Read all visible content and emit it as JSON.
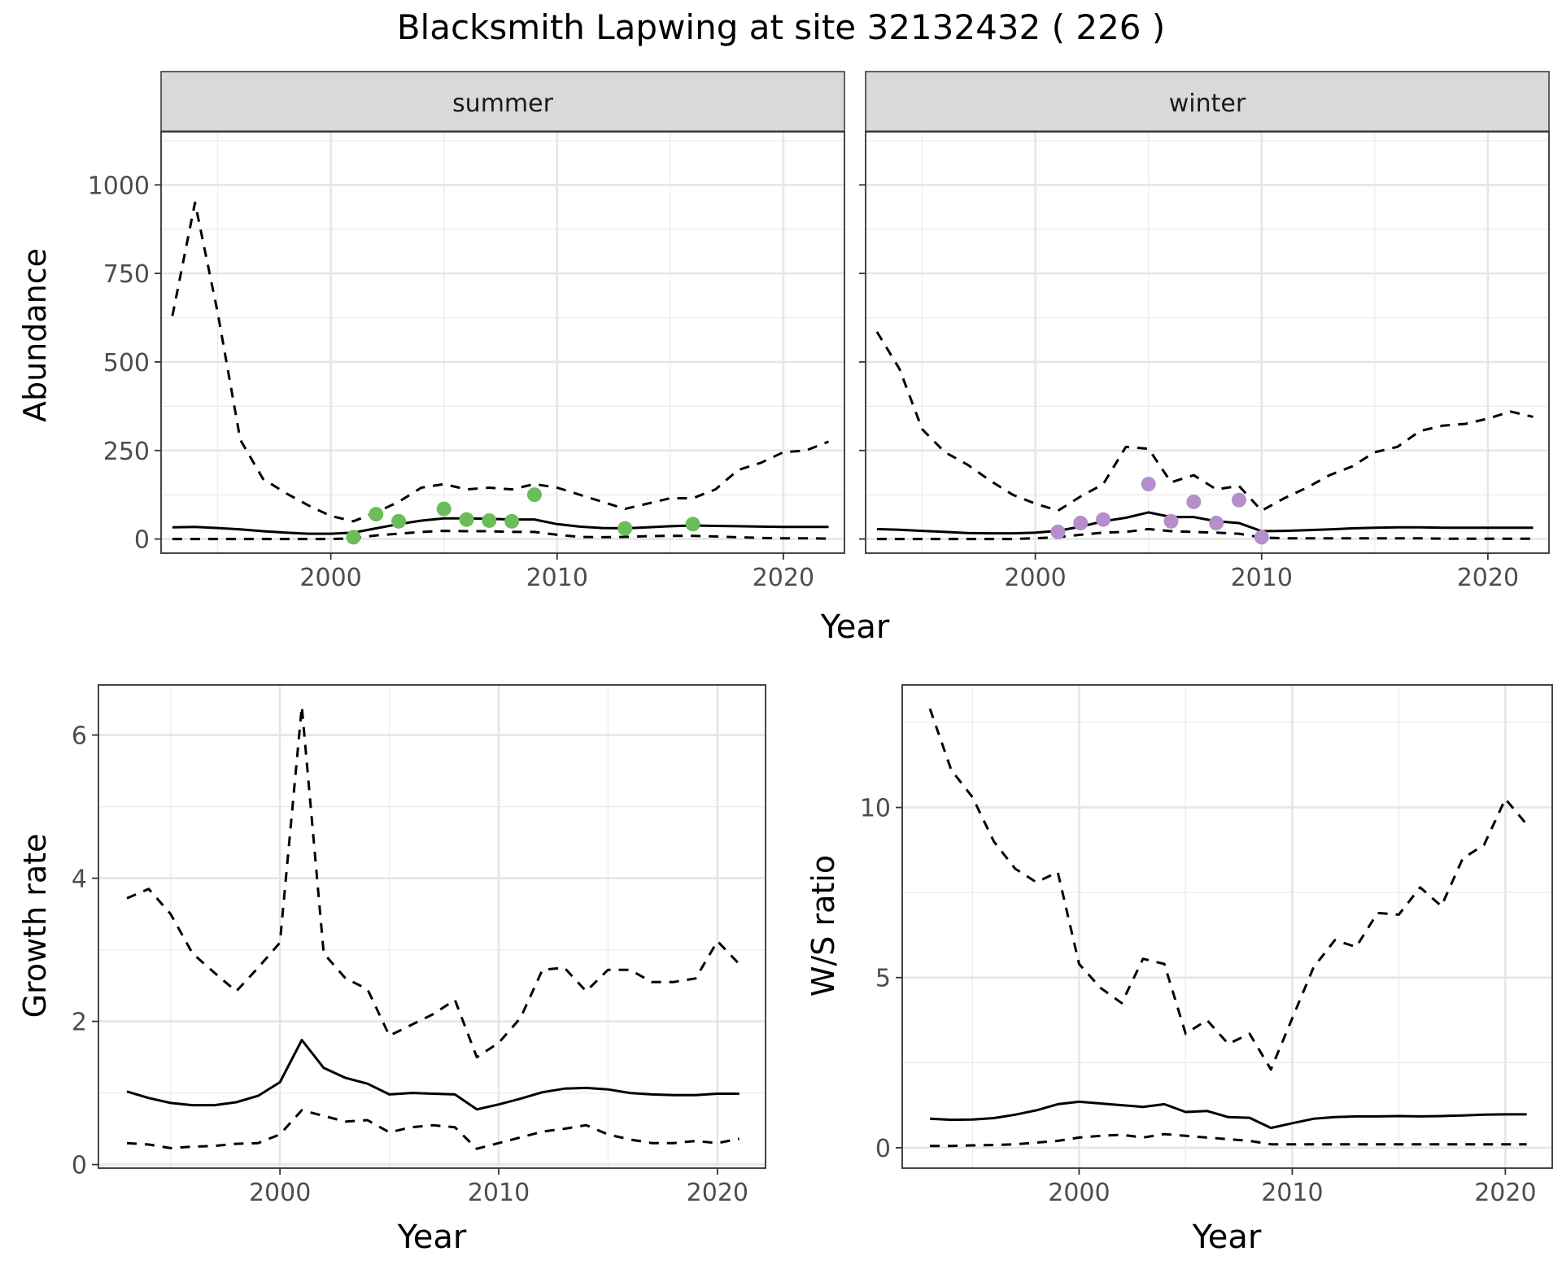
{
  "figure": {
    "title": "Blacksmith Lapwing at site 32132432 ( 226 )"
  },
  "chart_data": [
    {
      "type": "line",
      "panel": "summer",
      "strip_label": "summer",
      "xlabel": "",
      "ylabel": "Abundance",
      "xlim": [
        1992.5,
        2022.7
      ],
      "ylim": [
        -40,
        1150
      ],
      "xticks": [
        2000,
        2010,
        2020
      ],
      "yticks": [
        0,
        250,
        500,
        750,
        1000
      ],
      "grid": true,
      "series": [
        {
          "role": "estimate",
          "style": "solid",
          "x": [
            1993,
            1994,
            1995,
            1996,
            1997,
            1998,
            1999,
            2000,
            2001,
            2002,
            2003,
            2004,
            2005,
            2006,
            2007,
            2008,
            2009,
            2010,
            2011,
            2012,
            2013,
            2014,
            2015,
            2016,
            2017,
            2018,
            2019,
            2020,
            2021,
            2022
          ],
          "y": [
            33,
            34,
            31,
            27,
            22,
            18,
            15,
            15,
            18,
            30,
            42,
            52,
            58,
            58,
            57,
            55,
            55,
            42,
            35,
            31,
            30,
            33,
            36,
            38,
            37,
            36,
            35,
            34,
            34,
            34
          ]
        },
        {
          "role": "upper",
          "style": "dashed",
          "x": [
            1993,
            1994,
            1995,
            1996,
            1997,
            1998,
            1999,
            2000,
            2001,
            2002,
            2003,
            2004,
            2005,
            2006,
            2007,
            2008,
            2009,
            2010,
            2011,
            2012,
            2013,
            2014,
            2015,
            2016,
            2017,
            2018,
            2019,
            2020,
            2021,
            2022
          ],
          "y": [
            630,
            950,
            640,
            280,
            170,
            130,
            95,
            65,
            50,
            75,
            105,
            145,
            155,
            140,
            145,
            140,
            155,
            145,
            125,
            105,
            85,
            100,
            115,
            115,
            140,
            195,
            215,
            245,
            250,
            275
          ]
        },
        {
          "role": "lower",
          "style": "dashed",
          "x": [
            1993,
            1994,
            1995,
            1996,
            1997,
            1998,
            1999,
            2000,
            2001,
            2002,
            2003,
            2004,
            2005,
            2006,
            2007,
            2008,
            2009,
            2010,
            2011,
            2012,
            2013,
            2014,
            2015,
            2016,
            2017,
            2018,
            2019,
            2020,
            2021,
            2022
          ],
          "y": [
            0,
            0,
            0,
            0,
            0,
            0,
            0,
            0,
            2,
            10,
            15,
            20,
            23,
            22,
            22,
            20,
            20,
            12,
            6,
            5,
            6,
            8,
            9,
            9,
            7,
            5,
            3,
            2,
            2,
            1
          ]
        }
      ],
      "points": {
        "color": "#6ABD5A",
        "x": [
          2001,
          2002,
          2003,
          2005,
          2006,
          2007,
          2008,
          2009,
          2013,
          2016
        ],
        "y": [
          5,
          70,
          50,
          85,
          55,
          52,
          50,
          125,
          30,
          42
        ]
      }
    },
    {
      "type": "line",
      "panel": "winter",
      "strip_label": "winter",
      "xlabel": "",
      "ylabel": "",
      "xlim": [
        1992.5,
        2022.7
      ],
      "ylim": [
        -40,
        1150
      ],
      "xticks": [
        2000,
        2010,
        2020
      ],
      "yticks": [
        0,
        250,
        500,
        750,
        1000
      ],
      "grid": true,
      "series": [
        {
          "role": "estimate",
          "style": "solid",
          "x": [
            1993,
            1994,
            1995,
            1996,
            1997,
            1998,
            1999,
            2000,
            2001,
            2002,
            2003,
            2004,
            2005,
            2006,
            2007,
            2008,
            2009,
            2010,
            2011,
            2012,
            2013,
            2014,
            2015,
            2016,
            2017,
            2018,
            2019,
            2020,
            2021,
            2022
          ],
          "y": [
            28,
            26,
            23,
            20,
            17,
            16,
            16,
            18,
            23,
            35,
            50,
            60,
            75,
            62,
            62,
            50,
            45,
            22,
            23,
            25,
            27,
            30,
            32,
            33,
            33,
            32,
            32,
            32,
            32,
            32
          ]
        },
        {
          "role": "upper",
          "style": "dashed",
          "x": [
            1993,
            1994,
            1995,
            1996,
            1997,
            1998,
            1999,
            2000,
            2001,
            2002,
            2003,
            2004,
            2005,
            2006,
            2007,
            2008,
            2009,
            2010,
            2011,
            2012,
            2013,
            2014,
            2015,
            2016,
            2017,
            2018,
            2019,
            2020,
            2021,
            2022
          ],
          "y": [
            585,
            480,
            310,
            245,
            210,
            165,
            125,
            100,
            80,
            120,
            155,
            260,
            255,
            160,
            180,
            140,
            150,
            80,
            115,
            145,
            180,
            205,
            245,
            260,
            305,
            320,
            325,
            340,
            360,
            345
          ]
        },
        {
          "role": "lower",
          "style": "dashed",
          "x": [
            1993,
            1994,
            1995,
            1996,
            1997,
            1998,
            1999,
            2000,
            2001,
            2002,
            2003,
            2004,
            2005,
            2006,
            2007,
            2008,
            2009,
            2010,
            2011,
            2012,
            2013,
            2014,
            2015,
            2016,
            2017,
            2018,
            2019,
            2020,
            2021,
            2022
          ],
          "y": [
            0,
            0,
            0,
            0,
            0,
            0,
            0,
            2,
            5,
            12,
            18,
            20,
            28,
            22,
            20,
            18,
            15,
            4,
            2,
            2,
            2,
            2,
            2,
            2,
            2,
            1,
            1,
            1,
            1,
            1
          ]
        }
      ],
      "points": {
        "color": "#B48FC9",
        "x": [
          2001,
          2002,
          2003,
          2005,
          2006,
          2007,
          2008,
          2009,
          2010
        ],
        "y": [
          20,
          45,
          55,
          155,
          50,
          105,
          45,
          110,
          5
        ]
      }
    },
    {
      "type": "line",
      "panel": "growth",
      "xlabel": "Year",
      "ylabel": "Growth rate",
      "xlim": [
        1991.7,
        2022.2
      ],
      "ylim": [
        -0.05,
        6.7
      ],
      "xticks": [
        2000,
        2010,
        2020
      ],
      "yticks": [
        0,
        2,
        4,
        6
      ],
      "grid": true,
      "series": [
        {
          "role": "estimate",
          "style": "solid",
          "x": [
            1993,
            1994,
            1995,
            1996,
            1997,
            1998,
            1999,
            2000,
            2001,
            2002,
            2003,
            2004,
            2005,
            2006,
            2007,
            2008,
            2009,
            2010,
            2011,
            2012,
            2013,
            2014,
            2015,
            2016,
            2017,
            2018,
            2019,
            2020,
            2021
          ],
          "y": [
            1.02,
            0.93,
            0.86,
            0.83,
            0.83,
            0.87,
            0.96,
            1.15,
            1.74,
            1.35,
            1.21,
            1.13,
            0.98,
            1.0,
            0.99,
            0.98,
            0.77,
            0.84,
            0.92,
            1.01,
            1.06,
            1.07,
            1.05,
            1.0,
            0.98,
            0.97,
            0.97,
            0.99,
            0.99
          ]
        },
        {
          "role": "upper",
          "style": "dashed",
          "x": [
            1993,
            1994,
            1995,
            1996,
            1997,
            1998,
            1999,
            2000,
            2001,
            2002,
            2003,
            2004,
            2005,
            2006,
            2007,
            2008,
            2009,
            2010,
            2011,
            2012,
            2013,
            2014,
            2015,
            2016,
            2017,
            2018,
            2019,
            2020,
            2021
          ],
          "y": [
            3.72,
            3.85,
            3.5,
            2.95,
            2.68,
            2.42,
            2.75,
            3.1,
            6.4,
            2.95,
            2.6,
            2.45,
            1.8,
            1.95,
            2.1,
            2.3,
            1.5,
            1.7,
            2.05,
            2.72,
            2.75,
            2.42,
            2.72,
            2.72,
            2.55,
            2.55,
            2.6,
            3.12,
            2.8
          ]
        },
        {
          "role": "lower",
          "style": "dashed",
          "x": [
            1993,
            1994,
            1995,
            1996,
            1997,
            1998,
            1999,
            2000,
            2001,
            2002,
            2003,
            2004,
            2005,
            2006,
            2007,
            2008,
            2009,
            2010,
            2011,
            2012,
            2013,
            2014,
            2015,
            2016,
            2017,
            2018,
            2019,
            2020,
            2021
          ],
          "y": [
            0.3,
            0.28,
            0.23,
            0.25,
            0.26,
            0.29,
            0.3,
            0.42,
            0.76,
            0.68,
            0.6,
            0.62,
            0.45,
            0.52,
            0.55,
            0.52,
            0.22,
            0.3,
            0.38,
            0.46,
            0.5,
            0.55,
            0.42,
            0.35,
            0.3,
            0.3,
            0.33,
            0.3,
            0.36
          ]
        }
      ]
    },
    {
      "type": "line",
      "panel": "ratio",
      "xlabel": "Year",
      "ylabel": "W/S ratio",
      "xlim": [
        1991.7,
        2022.2
      ],
      "ylim": [
        -0.6,
        13.6
      ],
      "xticks": [
        2000,
        2010,
        2020
      ],
      "yticks": [
        0,
        5,
        10
      ],
      "grid": true,
      "series": [
        {
          "role": "estimate",
          "style": "solid",
          "x": [
            1993,
            1994,
            1995,
            1996,
            1997,
            1998,
            1999,
            2000,
            2001,
            2002,
            2003,
            2004,
            2005,
            2006,
            2007,
            2008,
            2009,
            2010,
            2011,
            2012,
            2013,
            2014,
            2015,
            2016,
            2017,
            2018,
            2019,
            2020,
            2021
          ],
          "y": [
            0.85,
            0.82,
            0.83,
            0.87,
            0.97,
            1.1,
            1.28,
            1.35,
            1.3,
            1.25,
            1.2,
            1.28,
            1.05,
            1.08,
            0.9,
            0.88,
            0.58,
            0.72,
            0.85,
            0.9,
            0.92,
            0.92,
            0.93,
            0.92,
            0.93,
            0.95,
            0.97,
            0.98,
            0.98
          ]
        },
        {
          "role": "upper",
          "style": "dashed",
          "x": [
            1993,
            1994,
            1995,
            1996,
            1997,
            1998,
            1999,
            2000,
            2001,
            2002,
            2003,
            2004,
            2005,
            2006,
            2007,
            2008,
            2009,
            2010,
            2011,
            2012,
            2013,
            2014,
            2015,
            2016,
            2017,
            2018,
            2019,
            2020,
            2021
          ],
          "y": [
            12.9,
            11.1,
            10.3,
            9.0,
            8.2,
            7.8,
            8.1,
            5.4,
            4.7,
            4.25,
            5.55,
            5.4,
            3.35,
            3.75,
            3.05,
            3.35,
            2.3,
            3.8,
            5.3,
            6.1,
            5.9,
            6.9,
            6.85,
            7.65,
            7.1,
            8.5,
            8.9,
            10.25,
            9.5
          ]
        },
        {
          "role": "lower",
          "style": "dashed",
          "x": [
            1993,
            1994,
            1995,
            1996,
            1997,
            1998,
            1999,
            2000,
            2001,
            2002,
            2003,
            2004,
            2005,
            2006,
            2007,
            2008,
            2009,
            2010,
            2011,
            2012,
            2013,
            2014,
            2015,
            2016,
            2017,
            2018,
            2019,
            2020,
            2021
          ],
          "y": [
            0.05,
            0.05,
            0.07,
            0.08,
            0.1,
            0.15,
            0.2,
            0.3,
            0.35,
            0.38,
            0.3,
            0.4,
            0.35,
            0.3,
            0.25,
            0.2,
            0.1,
            0.1,
            0.1,
            0.1,
            0.1,
            0.1,
            0.1,
            0.1,
            0.1,
            0.1,
            0.1,
            0.1,
            0.1
          ]
        }
      ]
    }
  ]
}
